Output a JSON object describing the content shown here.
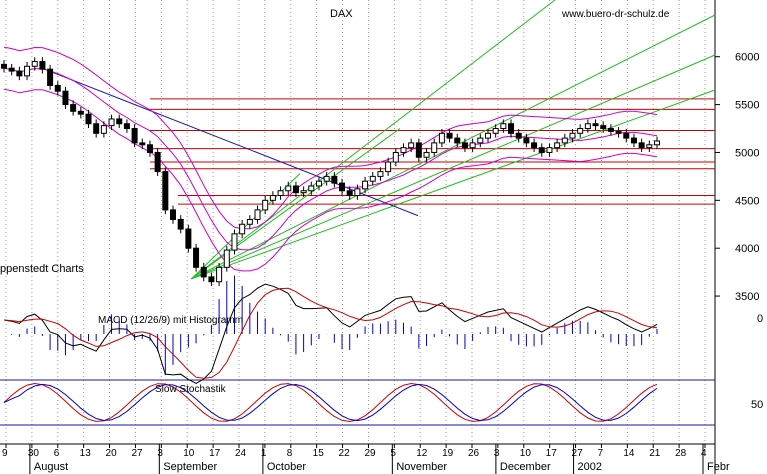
{
  "chart_data": {
    "type": "candlestick",
    "title": "DAX",
    "watermark": "www.buero-dr-schulz.de",
    "left_label": "ppenstedt Charts",
    "price_axis": {
      "ticks": [
        3500,
        4000,
        4500,
        5000,
        5500,
        6000
      ],
      "ylim": [
        3250,
        6300
      ],
      "side": "right"
    },
    "date_axis": {
      "day_ticks": [
        "9",
        "30",
        "6",
        "13",
        "20",
        "27",
        "3",
        "10",
        "17",
        "24",
        "1",
        "8",
        "15",
        "22",
        "29",
        "5",
        "12",
        "19",
        "26",
        "3",
        "10",
        "17",
        "27",
        "7",
        "14",
        "21",
        "28",
        "4"
      ],
      "month_labels": [
        "August",
        "September",
        "October",
        "November",
        "December",
        "2002",
        "Febr"
      ]
    },
    "close_series": [
      5880,
      5850,
      5800,
      5900,
      5950,
      5870,
      5700,
      5640,
      5500,
      5430,
      5400,
      5300,
      5200,
      5280,
      5350,
      5300,
      5250,
      5100,
      5080,
      5000,
      4800,
      4400,
      4300,
      4200,
      4000,
      3800,
      3700,
      3650,
      3800,
      3980,
      4150,
      4250,
      4300,
      4400,
      4500,
      4550,
      4600,
      4650,
      4580,
      4600,
      4650,
      4700,
      4750,
      4680,
      4600,
      4550,
      4620,
      4700,
      4750,
      4800,
      4900,
      5000,
      5050,
      5100,
      4950,
      5000,
      5100,
      5200,
      5150,
      5100,
      5050,
      5100,
      5150,
      5200,
      5250,
      5300,
      5200,
      5150,
      5100,
      5050,
      5000,
      5050,
      5100,
      5150,
      5200,
      5250,
      5300,
      5280,
      5250,
      5220,
      5200,
      5150,
      5100,
      5050,
      5080,
      5120
    ],
    "horizontal_levels": [
      5560,
      5450,
      5230,
      5040,
      4900,
      4830,
      4550,
      4460
    ],
    "overlays": [
      "Bollinger Bands",
      "Trend line",
      "Fan lines"
    ],
    "macd": {
      "label": "MACD (12/26/9) mit Histogramm",
      "tick": "0"
    },
    "stochastic": {
      "label": "Slow Stochastik",
      "tick": "50"
    },
    "colors": {
      "candle": "#000000",
      "resistance": "#cc0000",
      "trend": "#1a1aa8",
      "fan": "#22bb22",
      "bollinger": "#cc00cc",
      "macd": "#000000",
      "signal": "#cc0000",
      "histogram": "#0000cc",
      "stoch_k": "#cc0000",
      "stoch_d": "#0000cc",
      "grid": "#999999"
    }
  }
}
